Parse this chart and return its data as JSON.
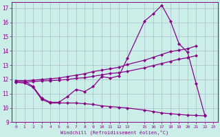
{
  "xlabel": "Windchill (Refroidissement éolien,°C)",
  "xlim": [
    -0.5,
    23.5
  ],
  "ylim": [
    9,
    17.4
  ],
  "xticks": [
    0,
    1,
    2,
    3,
    4,
    5,
    6,
    7,
    8,
    9,
    10,
    11,
    12,
    13,
    15,
    16,
    17,
    18,
    19,
    20,
    21,
    22,
    23
  ],
  "yticks": [
    9,
    10,
    11,
    12,
    13,
    14,
    15,
    16,
    17
  ],
  "line_color": "#880088",
  "bg_color": "#cceee8",
  "grid_color": "#aabbcc",
  "line1_x": [
    0,
    1,
    2,
    3,
    4,
    5,
    6,
    7,
    8,
    9,
    10,
    11,
    12,
    13,
    15,
    16,
    17,
    18,
    19,
    20,
    21,
    22
  ],
  "line1_y": [
    11.9,
    11.9,
    11.5,
    10.7,
    10.4,
    10.4,
    10.8,
    11.3,
    11.15,
    11.5,
    12.2,
    12.1,
    12.25,
    13.5,
    16.1,
    16.6,
    17.2,
    16.1,
    14.5,
    13.9,
    11.7,
    9.5
  ],
  "line2_x": [
    0,
    1,
    2,
    3,
    4,
    5,
    6,
    7,
    8,
    9,
    10,
    11,
    12,
    13,
    15,
    16,
    17,
    18,
    19,
    20,
    21
  ],
  "line2_y": [
    11.9,
    11.9,
    11.95,
    12.0,
    12.05,
    12.1,
    12.2,
    12.3,
    12.4,
    12.55,
    12.65,
    12.75,
    12.85,
    13.05,
    13.35,
    13.55,
    13.75,
    13.95,
    14.05,
    14.15,
    14.35
  ],
  "line3_x": [
    0,
    1,
    2,
    3,
    4,
    5,
    6,
    7,
    8,
    9,
    10,
    11,
    12,
    13,
    15,
    16,
    17,
    18,
    19,
    20,
    21
  ],
  "line3_y": [
    11.8,
    11.8,
    11.85,
    11.9,
    11.92,
    11.95,
    12.0,
    12.08,
    12.12,
    12.22,
    12.32,
    12.42,
    12.47,
    12.57,
    12.82,
    12.97,
    13.12,
    13.27,
    13.42,
    13.52,
    13.67
  ],
  "line4_x": [
    0,
    1,
    2,
    3,
    4,
    5,
    6,
    7,
    8,
    9,
    10,
    11,
    12,
    13,
    15,
    16,
    17,
    18,
    19,
    20,
    21,
    22
  ],
  "line4_y": [
    11.8,
    11.75,
    11.45,
    10.6,
    10.35,
    10.35,
    10.35,
    10.35,
    10.3,
    10.25,
    10.15,
    10.1,
    10.05,
    10.0,
    9.85,
    9.75,
    9.65,
    9.6,
    9.55,
    9.5,
    9.48,
    9.45
  ]
}
